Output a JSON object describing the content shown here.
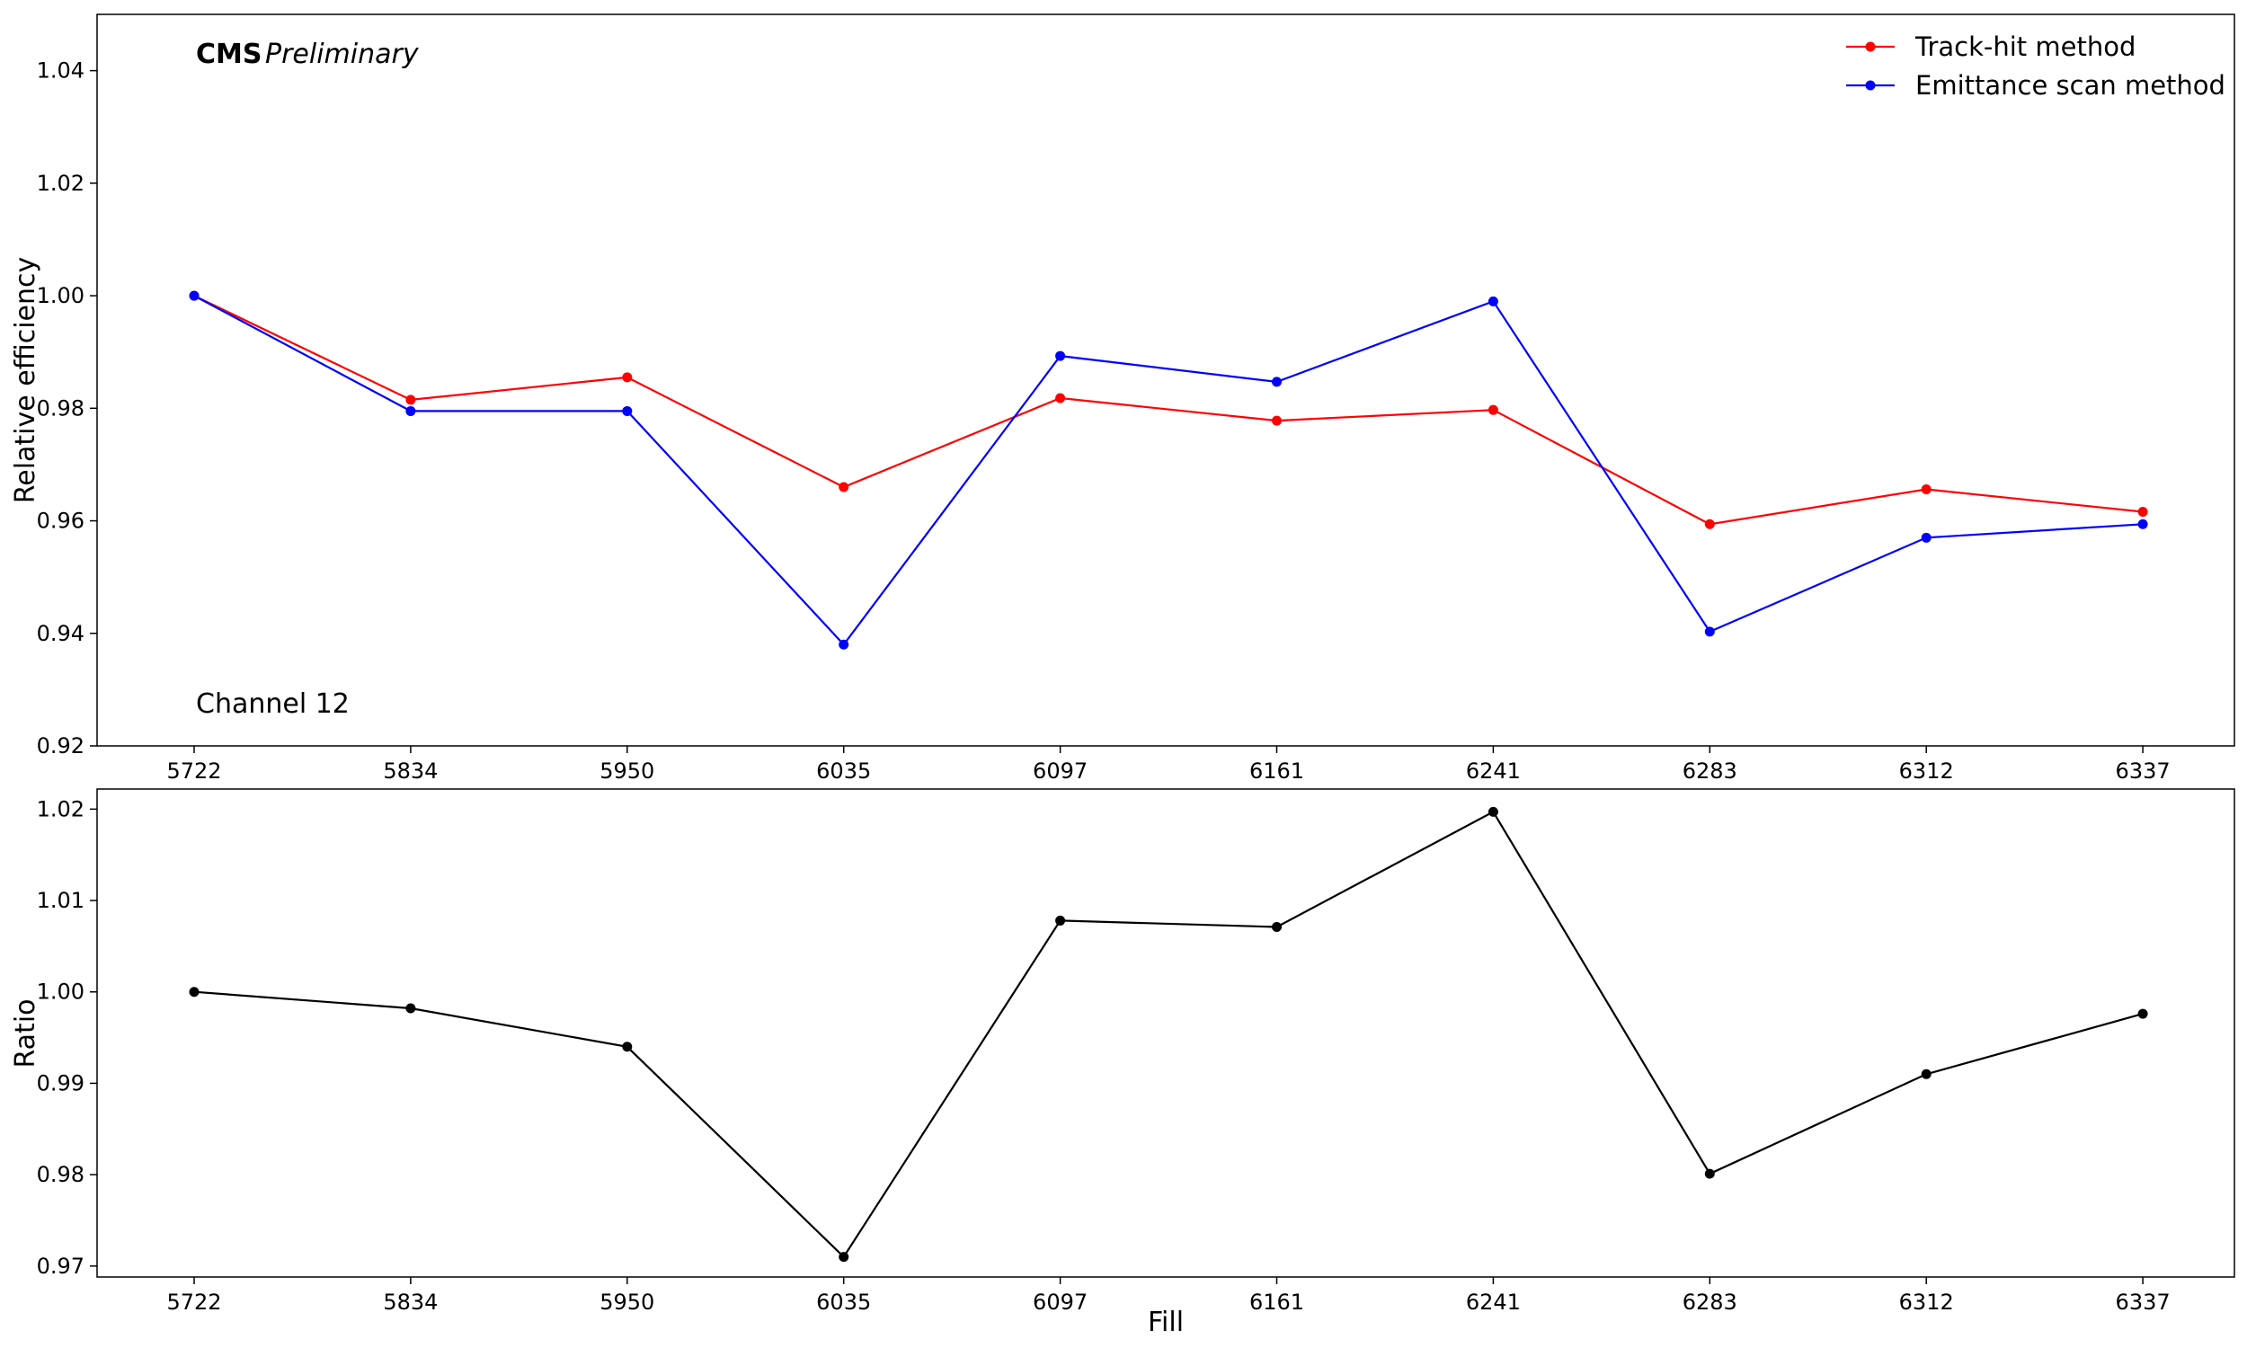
{
  "chart_data": [
    {
      "type": "line",
      "categories": [
        "5722",
        "5834",
        "5950",
        "6035",
        "6097",
        "6161",
        "6241",
        "6283",
        "6312",
        "6337"
      ],
      "series": [
        {
          "name": "Track-hit method",
          "color": "#ff0000",
          "values": [
            1.0,
            0.9815,
            0.9855,
            0.966,
            0.9818,
            0.9778,
            0.9797,
            0.9594,
            0.9656,
            0.9616
          ]
        },
        {
          "name": "Emittance scan method",
          "color": "#0000ff",
          "values": [
            1.0,
            0.9795,
            0.9795,
            0.938,
            0.9893,
            0.9847,
            0.999,
            0.9403,
            0.957,
            0.9594
          ]
        }
      ],
      "ylabel": "Relative efficiency",
      "ylim": [
        0.92,
        1.05
      ],
      "yticks": [
        "0.92",
        "0.94",
        "0.96",
        "0.98",
        "1.00",
        "1.02",
        "1.04"
      ],
      "legend_position": "top-right",
      "grid": false,
      "annotations": {
        "cms": "CMS",
        "preliminary": "Preliminary",
        "channel": "Channel 12"
      }
    },
    {
      "type": "line",
      "categories": [
        "5722",
        "5834",
        "5950",
        "6035",
        "6097",
        "6161",
        "6241",
        "6283",
        "6312",
        "6337"
      ],
      "series": [
        {
          "color": "#000000",
          "values": [
            1.0,
            0.9982,
            0.994,
            0.971,
            1.0078,
            1.0071,
            1.0197,
            0.9801,
            0.991,
            0.9976
          ]
        }
      ],
      "xlabel": "Fill",
      "ylabel": "Ratio",
      "ylim": [
        0.9688,
        1.0222
      ],
      "yticks": [
        "0.97",
        "0.98",
        "0.99",
        "1.00",
        "1.01",
        "1.02"
      ],
      "grid": false
    }
  ]
}
